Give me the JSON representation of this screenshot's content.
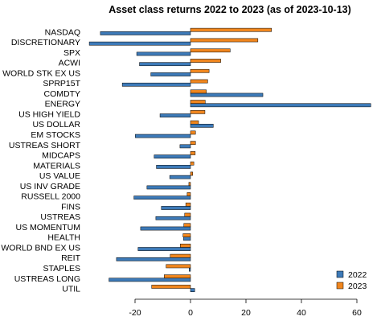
{
  "chart_data": {
    "type": "bar",
    "orientation": "horizontal",
    "title": "Asset class returns 2022 to 2023  (as of 2023-10-13)",
    "xlabel": "",
    "ylabel": "",
    "xlim": [
      -28,
      65
    ],
    "xticks": [
      -20,
      0,
      20,
      40,
      60
    ],
    "grid": false,
    "legend_position": "bottom-right",
    "categories": [
      "NASDAQ",
      "DISCRETIONARY",
      "SPX",
      "ACWI",
      "WORLD STK EX US",
      "SPRP15T",
      "COMDTY",
      "ENERGY",
      "US HIGH YIELD",
      "US DOLLAR",
      "EM STOCKS",
      "USTREAS SHORT",
      "MIDCAPS",
      "MATERIALS",
      "US VALUE",
      "US INV GRADE",
      "RUSSELL 2000",
      "FINS",
      "USTREAS",
      "US MOMENTUM",
      "HEALTH",
      "WORLD BND EX US",
      "REIT",
      "STAPLES",
      "USTREAS LONG",
      "UTIL"
    ],
    "series": [
      {
        "name": "2022",
        "color": "#3d7ab8",
        "values": [
          -32.5,
          -36.5,
          -19.4,
          -18.4,
          -14.3,
          -24.6,
          26.1,
          65,
          -11,
          8.2,
          -19.9,
          -3.8,
          -13.1,
          -12.3,
          -7.5,
          -15.7,
          -20.4,
          -10.5,
          -12.5,
          -18,
          -2.5,
          -18.9,
          -26.7,
          -0.5,
          -29.4,
          1.5
        ]
      },
      {
        "name": "2023",
        "color": "#f0861e",
        "values": [
          29.2,
          24.3,
          14.3,
          10.9,
          6.7,
          6.2,
          5.7,
          5.3,
          5.2,
          2.9,
          1.8,
          1.8,
          1.7,
          1.2,
          0.8,
          -0.6,
          -1.2,
          -1.7,
          -2.1,
          -2.4,
          -2.7,
          -3.7,
          -7.3,
          -8.8,
          -9.5,
          -14
        ]
      }
    ]
  }
}
